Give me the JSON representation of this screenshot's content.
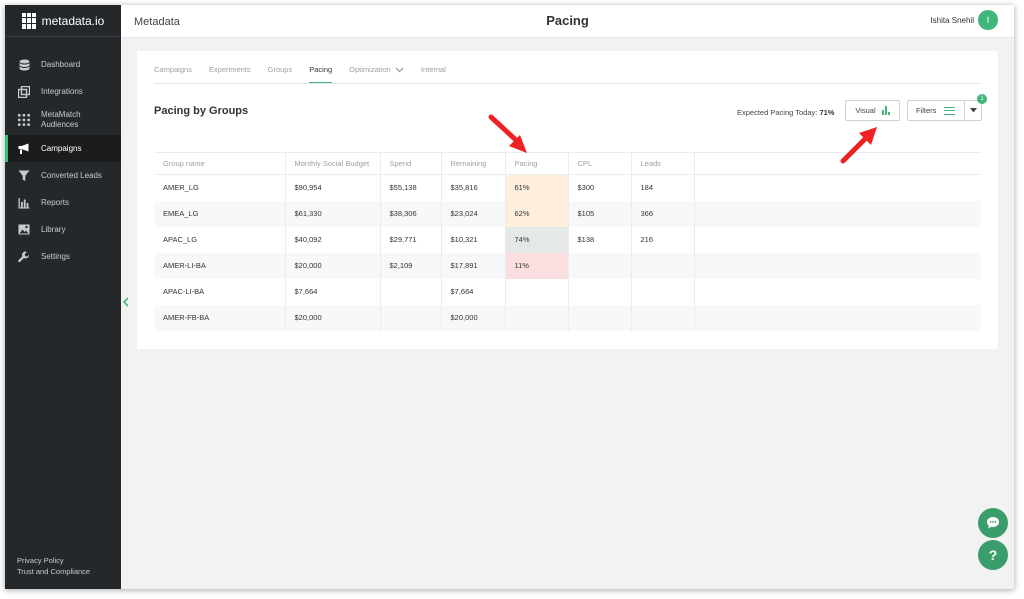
{
  "app": {
    "logo_text": "metadata.io"
  },
  "sidebar": {
    "items": [
      {
        "label": "Dashboard",
        "icon": "database-icon"
      },
      {
        "label": "Integrations",
        "icon": "integrations-icon"
      },
      {
        "label": "MetaMatch Audiences",
        "icon": "audiences-icon"
      },
      {
        "label": "Campaigns",
        "icon": "megaphone-icon",
        "active": true
      },
      {
        "label": "Converted Leads",
        "icon": "funnel-icon"
      },
      {
        "label": "Reports",
        "icon": "bar-chart-icon"
      },
      {
        "label": "Library",
        "icon": "image-icon"
      },
      {
        "label": "Settings",
        "icon": "wrench-icon"
      }
    ],
    "footer": {
      "privacy": "Privacy Policy",
      "trust": "Trust and Compliance"
    }
  },
  "header": {
    "crumb": "Metadata",
    "title": "Pacing",
    "user_name": "Ishita Snehil",
    "avatar_initial": "I"
  },
  "tabs": [
    {
      "label": "Campaigns"
    },
    {
      "label": "Experiments"
    },
    {
      "label": "Groups"
    },
    {
      "label": "Pacing",
      "active": true
    },
    {
      "label": "Optimization",
      "has_dropdown": true
    },
    {
      "label": "Internal"
    }
  ],
  "section": {
    "title": "Pacing by Groups",
    "expected_label": "Expected Pacing Today:",
    "expected_value": "71%",
    "visual_label": "Visual",
    "filters_label": "Filters",
    "filters_badge": "1"
  },
  "table": {
    "headers": [
      "Group name",
      "Monthly Social Budget",
      "Spend",
      "Remaining",
      "Pacing",
      "CPL",
      "Leads"
    ],
    "rows": [
      {
        "group": "AMER_LG",
        "budget": "$90,954",
        "spend": "$55,138",
        "remaining": "$35,816",
        "pacing": "61%",
        "pacing_status": "mid",
        "cpl": "$300",
        "leads": "184"
      },
      {
        "group": "EMEA_LG",
        "budget": "$61,330",
        "spend": "$38,306",
        "remaining": "$23,024",
        "pacing": "62%",
        "pacing_status": "mid",
        "cpl": "$105",
        "leads": "366"
      },
      {
        "group": "APAC_LG",
        "budget": "$40,092",
        "spend": "$29,771",
        "remaining": "$10,321",
        "pacing": "74%",
        "pacing_status": "ok",
        "cpl": "$138",
        "leads": "216"
      },
      {
        "group": "AMER-LI-BA",
        "budget": "$20,000",
        "spend": "$2,109",
        "remaining": "$17,891",
        "pacing": "11%",
        "pacing_status": "low",
        "cpl": "",
        "leads": ""
      },
      {
        "group": "APAC-LI-BA",
        "budget": "$7,664",
        "spend": "",
        "remaining": "$7,664",
        "pacing": "",
        "pacing_status": "",
        "cpl": "",
        "leads": ""
      },
      {
        "group": "AMER-FB-BA",
        "budget": "$20,000",
        "spend": "",
        "remaining": "$20,000",
        "pacing": "",
        "pacing_status": "",
        "cpl": "",
        "leads": ""
      }
    ]
  },
  "colors": {
    "accent": "#3fb67a",
    "sidebar_bg": "#25282b",
    "annotation_arrow": "#ee2222",
    "pacing_mid": "#fdeedd",
    "pacing_ok": "#e4e9e7",
    "pacing_low": "#fbdfe0"
  },
  "fabs": {
    "chat_icon": "chat-bubble-icon",
    "help_label": "?"
  }
}
